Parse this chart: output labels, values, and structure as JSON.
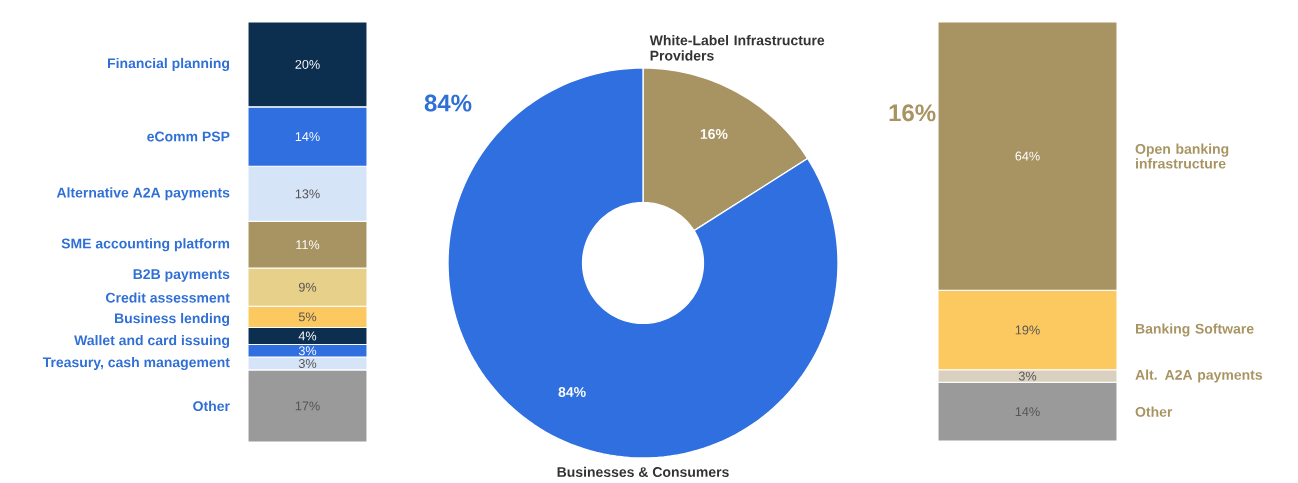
{
  "chart_data": [
    {
      "type": "bar",
      "stacked": true,
      "categories": [
        null
      ],
      "series": [
        {
          "name": "Other",
          "color": "#9a9a9a",
          "values": [
            17
          ],
          "value_labels": [
            "17%"
          ]
        },
        {
          "name": "Treasury, cash management",
          "color": "#d6e4f7",
          "values": [
            3
          ],
          "value_labels": [
            "3%"
          ]
        },
        {
          "name": "Wallet and card issuing",
          "color": "#2f6fe0",
          "values": [
            3
          ],
          "value_labels": [
            "3%"
          ]
        },
        {
          "name": "Business lending",
          "color": "#0d2f4f",
          "values": [
            4
          ],
          "value_labels": [
            "4%"
          ]
        },
        {
          "name": "Credit assessment",
          "color": "#fcc860",
          "values": [
            5
          ],
          "value_labels": [
            "5%"
          ]
        },
        {
          "name": "B2B payments",
          "color": "#e6d08a",
          "values": [
            9
          ],
          "value_labels": [
            "9%"
          ]
        },
        {
          "name": "SME accounting platform",
          "color": "#a89462",
          "values": [
            11
          ],
          "value_labels": [
            "11%"
          ]
        },
        {
          "name": "Alternative A2A payments",
          "color": "#d6e4f7",
          "values": [
            13
          ],
          "value_labels": [
            "13%"
          ]
        },
        {
          "name": "eComm PSP",
          "color": "#2f6fe0",
          "values": [
            14
          ],
          "value_labels": [
            "14%"
          ]
        },
        {
          "name": "Financial planning",
          "color": "#0d2f4f",
          "values": [
            20
          ],
          "value_labels": [
            "20%"
          ]
        }
      ]
    },
    {
      "type": "donut",
      "categories": [
        "White-Label Infrastructure Providers",
        "Businesses & Consumers"
      ],
      "values": [
        16,
        84
      ],
      "colors": [
        "#a89462",
        "#2f6fe0"
      ],
      "value_labels": [
        "16%",
        "84%"
      ],
      "annotations": [
        "84%",
        "16%"
      ]
    },
    {
      "type": "bar",
      "stacked": true,
      "categories": [
        null
      ],
      "series": [
        {
          "name": "Other",
          "color": "#9a9a9a",
          "values": [
            14
          ],
          "value_labels": [
            "14%"
          ]
        },
        {
          "name": "Alt. A2A payments",
          "color": "#d9d0c0",
          "values": [
            3
          ],
          "value_labels": [
            "3%"
          ]
        },
        {
          "name": "Banking Software",
          "color": "#fcc860",
          "values": [
            19
          ],
          "value_labels": [
            "19%"
          ]
        },
        {
          "name": "Open banking infrastructure",
          "color": "#a89462",
          "values": [
            64
          ],
          "value_labels": [
            "64%"
          ]
        }
      ]
    }
  ]
}
